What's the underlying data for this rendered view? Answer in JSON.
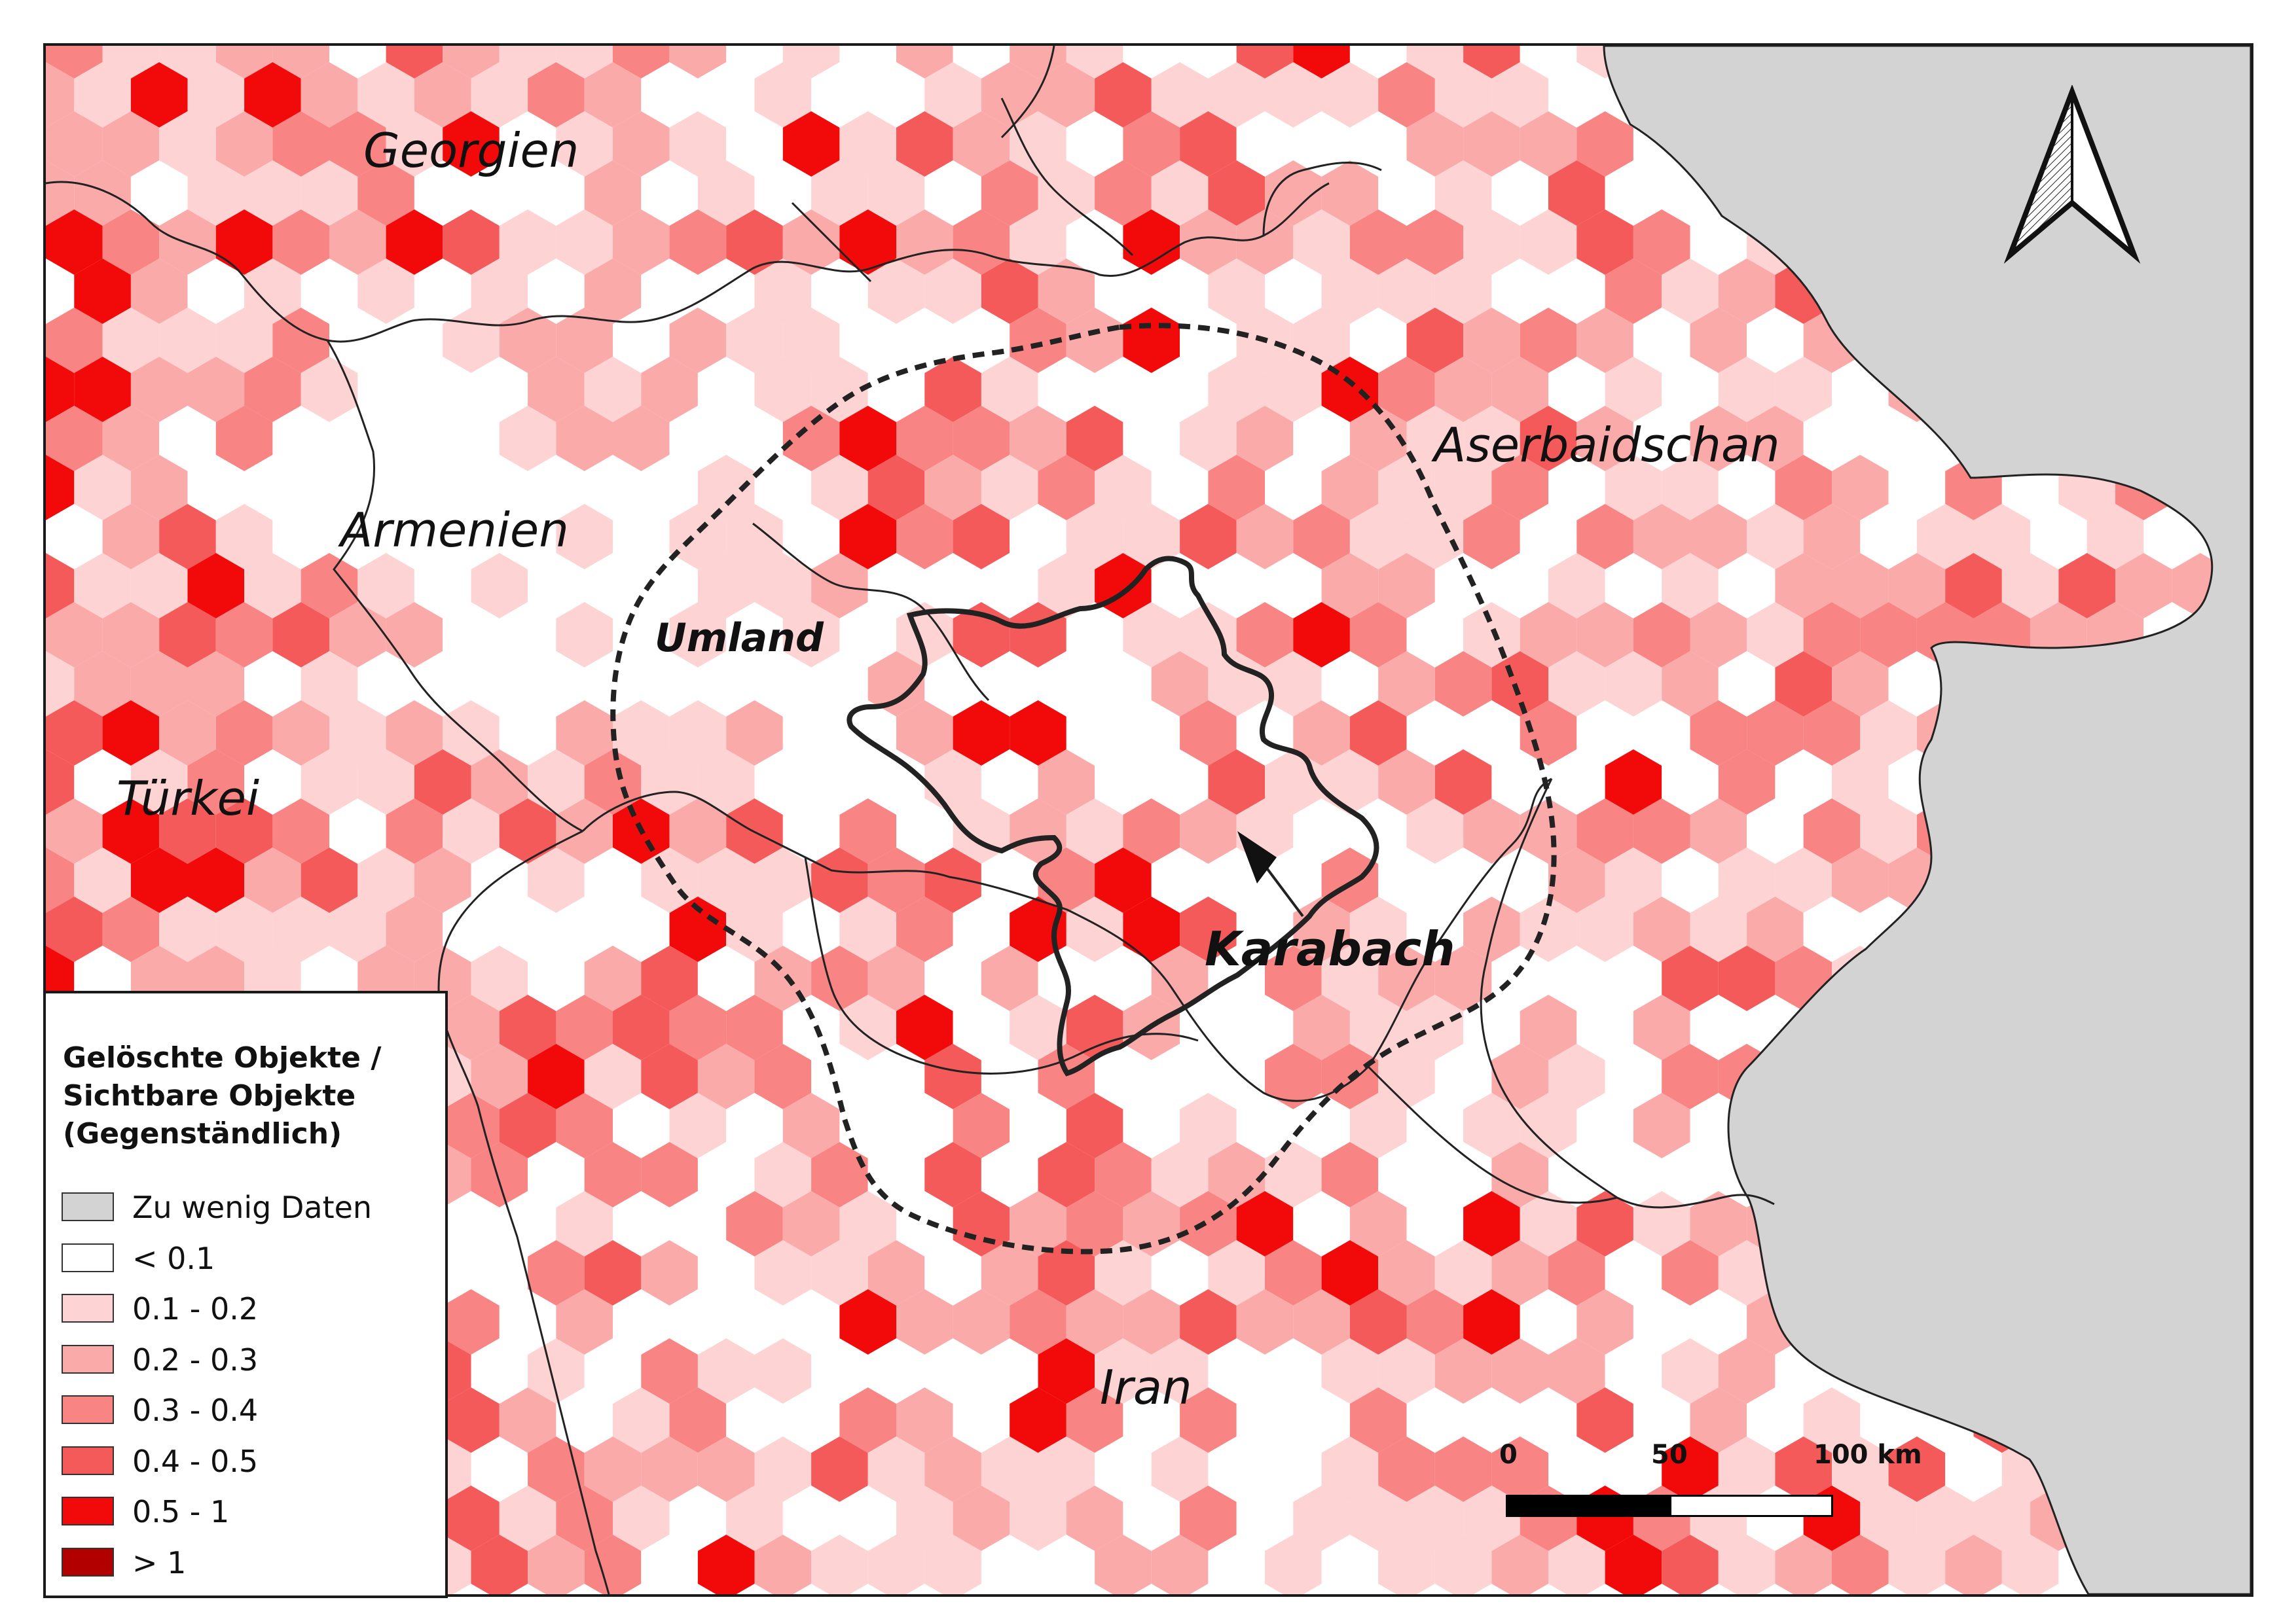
{
  "map": {
    "countries": [
      {
        "name": "Georgien"
      },
      {
        "name": "Aserbaidschan"
      },
      {
        "name": "Armenien"
      },
      {
        "name": "Türkei"
      },
      {
        "name": "Iran"
      }
    ],
    "regions": [
      {
        "name": "Umland"
      },
      {
        "name": "Karabach"
      }
    ],
    "colors": {
      "no_data": "#d3d3d3",
      "lt_0_1": "#ffffff",
      "c_0_1_0_2": "#fdd3d3",
      "c_0_2_0_3": "#fbaaaa",
      "c_0_3_0_4": "#f88484",
      "c_0_4_0_5": "#f55a5a",
      "c_0_5_1": "#f20a0a",
      "gt_1": "#b20000",
      "sea": "#d3d3d3",
      "border": "#222222"
    }
  },
  "legend": {
    "title_lines": [
      "Gelöschte Objekte /",
      "Sichtbare Objekte",
      "(Gegenständlich)"
    ],
    "items": [
      {
        "label": "Zu wenig Daten",
        "color": "#d3d3d3"
      },
      {
        "label": "< 0.1",
        "color": "#ffffff"
      },
      {
        "label": "0.1 - 0.2",
        "color": "#fdd3d3"
      },
      {
        "label": "0.2 - 0.3",
        "color": "#fbaaaa"
      },
      {
        "label": "0.3 - 0.4",
        "color": "#f88484"
      },
      {
        "label": "0.4 - 0.5",
        "color": "#f55a5a"
      },
      {
        "label": "0.5 - 1",
        "color": "#f20a0a"
      },
      {
        "label": "> 1",
        "color": "#b20000"
      }
    ]
  },
  "scalebar": {
    "labels": [
      "0",
      "50",
      "100 km"
    ]
  },
  "north_arrow": {
    "icon": "north-arrow-icon"
  }
}
